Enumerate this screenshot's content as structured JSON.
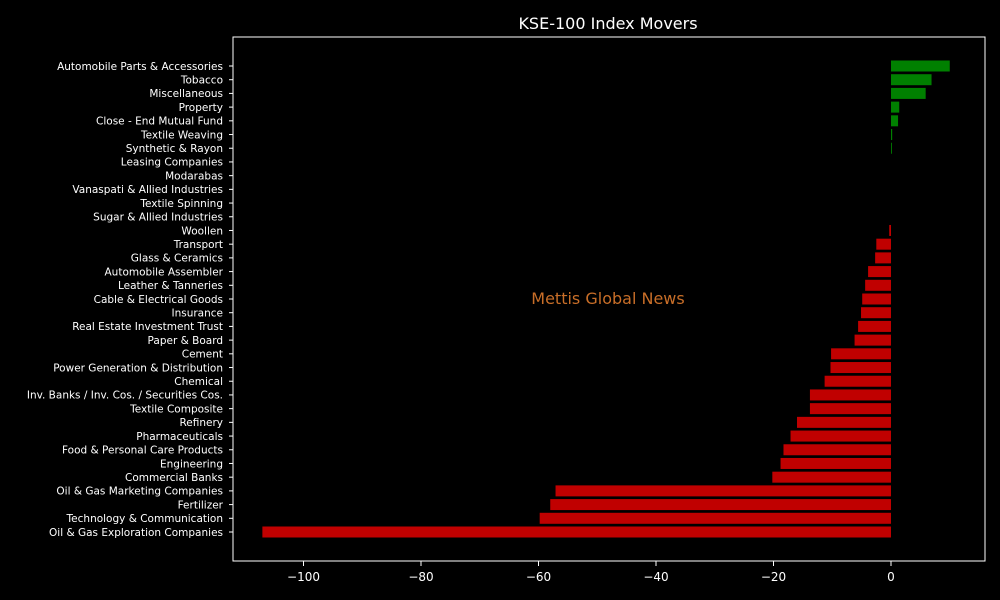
{
  "chart_data": {
    "type": "bar",
    "orientation": "horizontal",
    "title": "KSE-100 Index Movers",
    "xlabel": "",
    "ylabel": "",
    "xlim": [
      -112,
      16
    ],
    "xticks": [
      -100,
      -80,
      -60,
      -40,
      -20,
      0
    ],
    "xtick_labels": [
      "−100",
      "−80",
      "−60",
      "−40",
      "−20",
      "0"
    ],
    "grid": false,
    "legend": "none",
    "watermark": "Mettis Global News",
    "colors": {
      "background": "#000000",
      "positive": "#008000",
      "negative": "#c00000",
      "text": "#ffffff",
      "axes": "#ffffff",
      "watermark": "#c86e28"
    },
    "categories": [
      "Automobile Parts & Accessories",
      "Tobacco",
      "Miscellaneous",
      "Property",
      "Close - End Mutual Fund",
      "Textile Weaving",
      "Synthetic & Rayon",
      "Leasing Companies",
      "Modarabas",
      "Vanaspati & Allied Industries",
      "Textile Spinning",
      "Sugar & Allied Industries",
      "Woollen",
      "Transport",
      "Glass & Ceramics",
      "Automobile Assembler",
      "Leather & Tanneries",
      "Cable & Electrical Goods",
      "Insurance",
      "Real Estate Investment Trust",
      "Paper & Board",
      "Cement",
      "Power Generation & Distribution",
      "Chemical",
      "Inv. Banks / Inv. Cos. / Securities Cos.",
      "Textile Composite",
      "Refinery",
      "Pharmaceuticals",
      "Food & Personal Care Products",
      "Engineering",
      "Commercial Banks",
      "Oil & Gas Marketing Companies",
      "Fertilizer",
      "Technology & Communication",
      "Oil & Gas Exploration Companies"
    ],
    "values": [
      10.0,
      6.9,
      5.9,
      1.4,
      1.2,
      0.2,
      0.15,
      0.0,
      0.0,
      0.0,
      0.0,
      0.0,
      -0.3,
      -2.5,
      -2.7,
      -3.9,
      -4.4,
      -4.9,
      -5.1,
      -5.6,
      -6.2,
      -10.2,
      -10.3,
      -11.3,
      -13.8,
      -13.8,
      -16.0,
      -17.1,
      -18.3,
      -18.8,
      -20.2,
      -57.1,
      -58.0,
      -59.8,
      -107.0
    ]
  }
}
